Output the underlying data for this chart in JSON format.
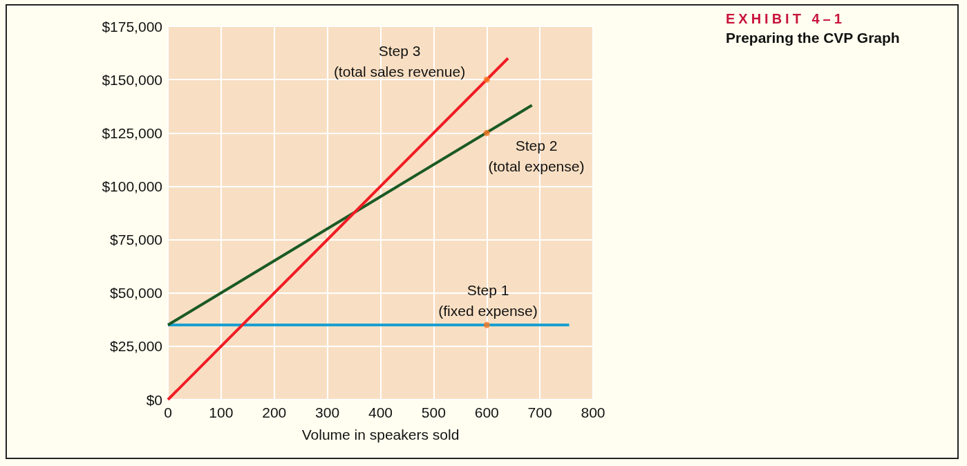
{
  "chart_data": {
    "type": "line",
    "title": "EXHIBIT 4–1",
    "subtitle": "Preparing the CVP Graph",
    "xlabel": "Volume in speakers sold",
    "series": [
      {
        "color": "#1a9fd0",
        "x": [
          0,
          755
        ],
        "values": [
          35000,
          35000
        ]
      },
      {
        "color": "#1b5a25",
        "x": [
          0,
          685
        ],
        "values": [
          35000,
          138000
        ]
      },
      {
        "color": "#f01c24",
        "x": [
          0,
          640
        ],
        "values": [
          0,
          160000
        ]
      },
      {
        "type": "scatter",
        "marker": "circle",
        "color": "#f7761f",
        "x": [
          600,
          600,
          600
        ],
        "values": [
          35000,
          125000,
          150000
        ]
      }
    ],
    "xlim": [
      0,
      800
    ],
    "xticks": [
      0,
      100,
      200,
      300,
      400,
      500,
      600,
      700,
      800
    ],
    "ylim": [
      0,
      175000
    ],
    "yticks": [
      {
        "value": 0,
        "label": "$0"
      },
      {
        "value": 25000,
        "label": "$25,000"
      },
      {
        "value": 50000,
        "label": "$50,000"
      },
      {
        "value": 75000,
        "label": "$75,000"
      },
      {
        "value": 100000,
        "label": "$100,000"
      },
      {
        "value": 125000,
        "label": "$125,000"
      },
      {
        "value": 150000,
        "label": "$150,000"
      },
      {
        "value": 175000,
        "label": "$175,000"
      }
    ],
    "grid": true,
    "marker": "none",
    "line_style": "solid",
    "annotations": [
      "Step 3\n(total sales revenue)",
      "Step 2\n(total expense)",
      "Step 1\n(fixed expense)"
    ]
  }
}
